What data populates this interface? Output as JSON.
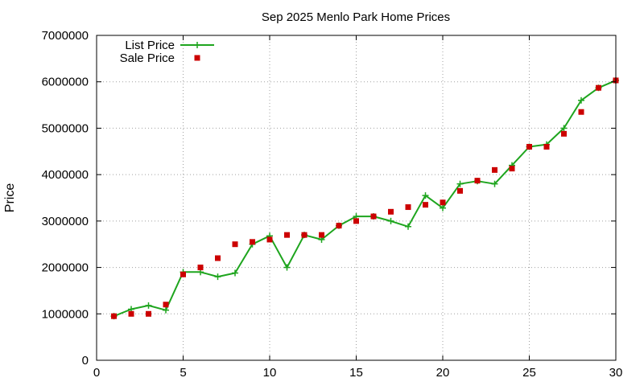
{
  "chart_data": {
    "type": "line",
    "title": "Sep 2025 Menlo Park Home Prices",
    "xlabel": "",
    "ylabel": "Price",
    "xlim": [
      0,
      30
    ],
    "ylim": [
      0,
      7000000
    ],
    "xticks": [
      0,
      5,
      10,
      15,
      20,
      25,
      30
    ],
    "yticks": [
      0,
      1000000,
      2000000,
      3000000,
      4000000,
      5000000,
      6000000,
      7000000
    ],
    "grid": true,
    "legend_position": "top-left",
    "series": [
      {
        "name": "List Price",
        "style": "line-with-plus-markers",
        "color": "#1ea51e",
        "x": [
          1,
          2,
          3,
          4,
          5,
          6,
          7,
          8,
          9,
          10,
          11,
          12,
          13,
          14,
          15,
          16,
          17,
          18,
          19,
          20,
          21,
          22,
          23,
          24,
          25,
          26,
          27,
          28,
          29,
          30
        ],
        "values": [
          950000,
          1100000,
          1180000,
          1080000,
          1900000,
          1900000,
          1800000,
          1880000,
          2500000,
          2680000,
          2000000,
          2700000,
          2600000,
          2900000,
          3100000,
          3100000,
          3000000,
          2880000,
          3550000,
          3280000,
          3800000,
          3860000,
          3800000,
          4200000,
          4600000,
          4650000,
          5000000,
          5600000,
          5870000,
          6030000
        ]
      },
      {
        "name": "Sale Price",
        "style": "square-markers",
        "color": "#cc0000",
        "x": [
          1,
          2,
          3,
          4,
          5,
          6,
          7,
          8,
          9,
          10,
          11,
          12,
          13,
          14,
          15,
          16,
          17,
          18,
          19,
          20,
          21,
          22,
          23,
          24,
          25,
          26,
          27,
          28,
          29,
          30
        ],
        "values": [
          950000,
          1000000,
          1000000,
          1200000,
          1850000,
          2000000,
          2200000,
          2500000,
          2550000,
          2600000,
          2700000,
          2700000,
          2700000,
          2900000,
          3000000,
          3100000,
          3200000,
          3300000,
          3350000,
          3400000,
          3650000,
          3870000,
          4100000,
          4130000,
          4600000,
          4600000,
          4880000,
          5350000,
          5870000,
          6030000
        ]
      }
    ]
  }
}
